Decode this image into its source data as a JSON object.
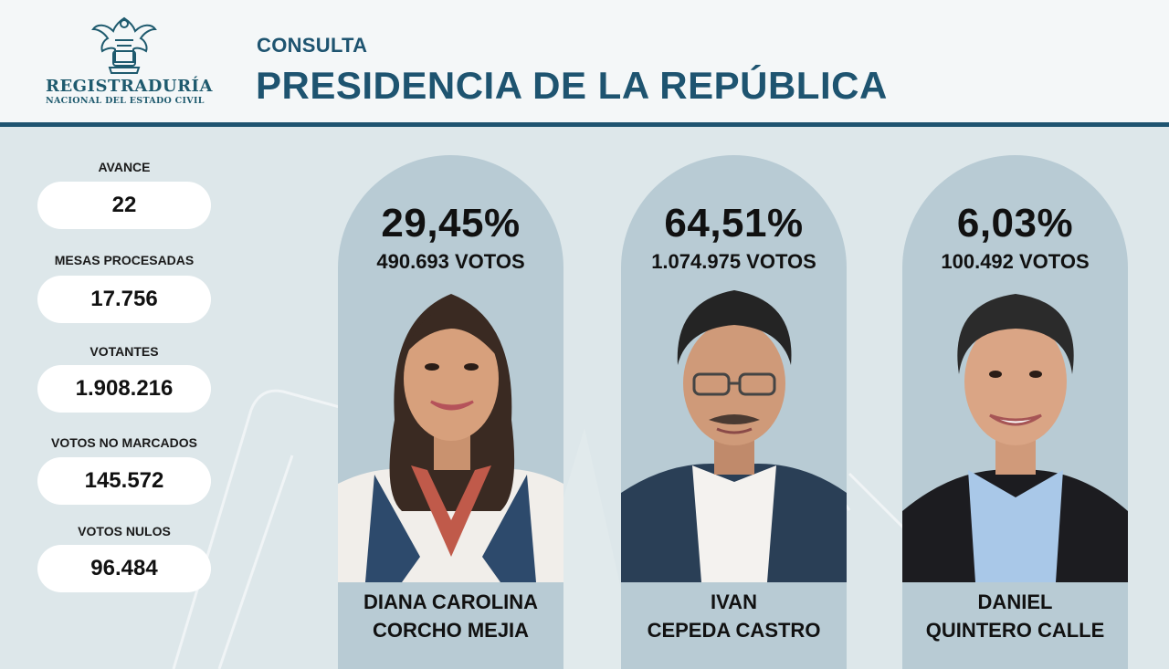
{
  "header": {
    "logo": {
      "title": "REGISTRADURÍA",
      "subtitle": "NACIONAL DEL ESTADO CIVIL",
      "icon": "condor-shield-emblem-icon"
    },
    "kicker": "CONSULTA",
    "title": "PRESIDENCIA DE LA REPÚBLICA"
  },
  "stats": [
    {
      "label": "AVANCE",
      "value": "22"
    },
    {
      "label": "MESAS PROCESADAS",
      "value": "17.756"
    },
    {
      "label": "VOTANTES",
      "value": "1.908.216"
    },
    {
      "label": "VOTOS NO MARCADOS",
      "value": "145.572"
    },
    {
      "label": "VOTOS NULOS",
      "value": "96.484"
    }
  ],
  "candidates": [
    {
      "percent": "29,45%",
      "votes": "490.693 VOTOS",
      "name_line1": "DIANA CAROLINA",
      "name_line2": "CORCHO MEJIA",
      "share": 29.45
    },
    {
      "percent": "64,51%",
      "votes": "1.074.975 VOTOS",
      "name_line1": "IVAN",
      "name_line2": "CEPEDA CASTRO",
      "share": 64.51
    },
    {
      "percent": "6,03%",
      "votes": "100.492 VOTOS",
      "name_line1": "DANIEL",
      "name_line2": "QUINTERO CALLE",
      "share": 6.03
    }
  ],
  "colors": {
    "brand": "#1e5470",
    "card": "#b8cbd4",
    "background": "#dde7ea"
  }
}
